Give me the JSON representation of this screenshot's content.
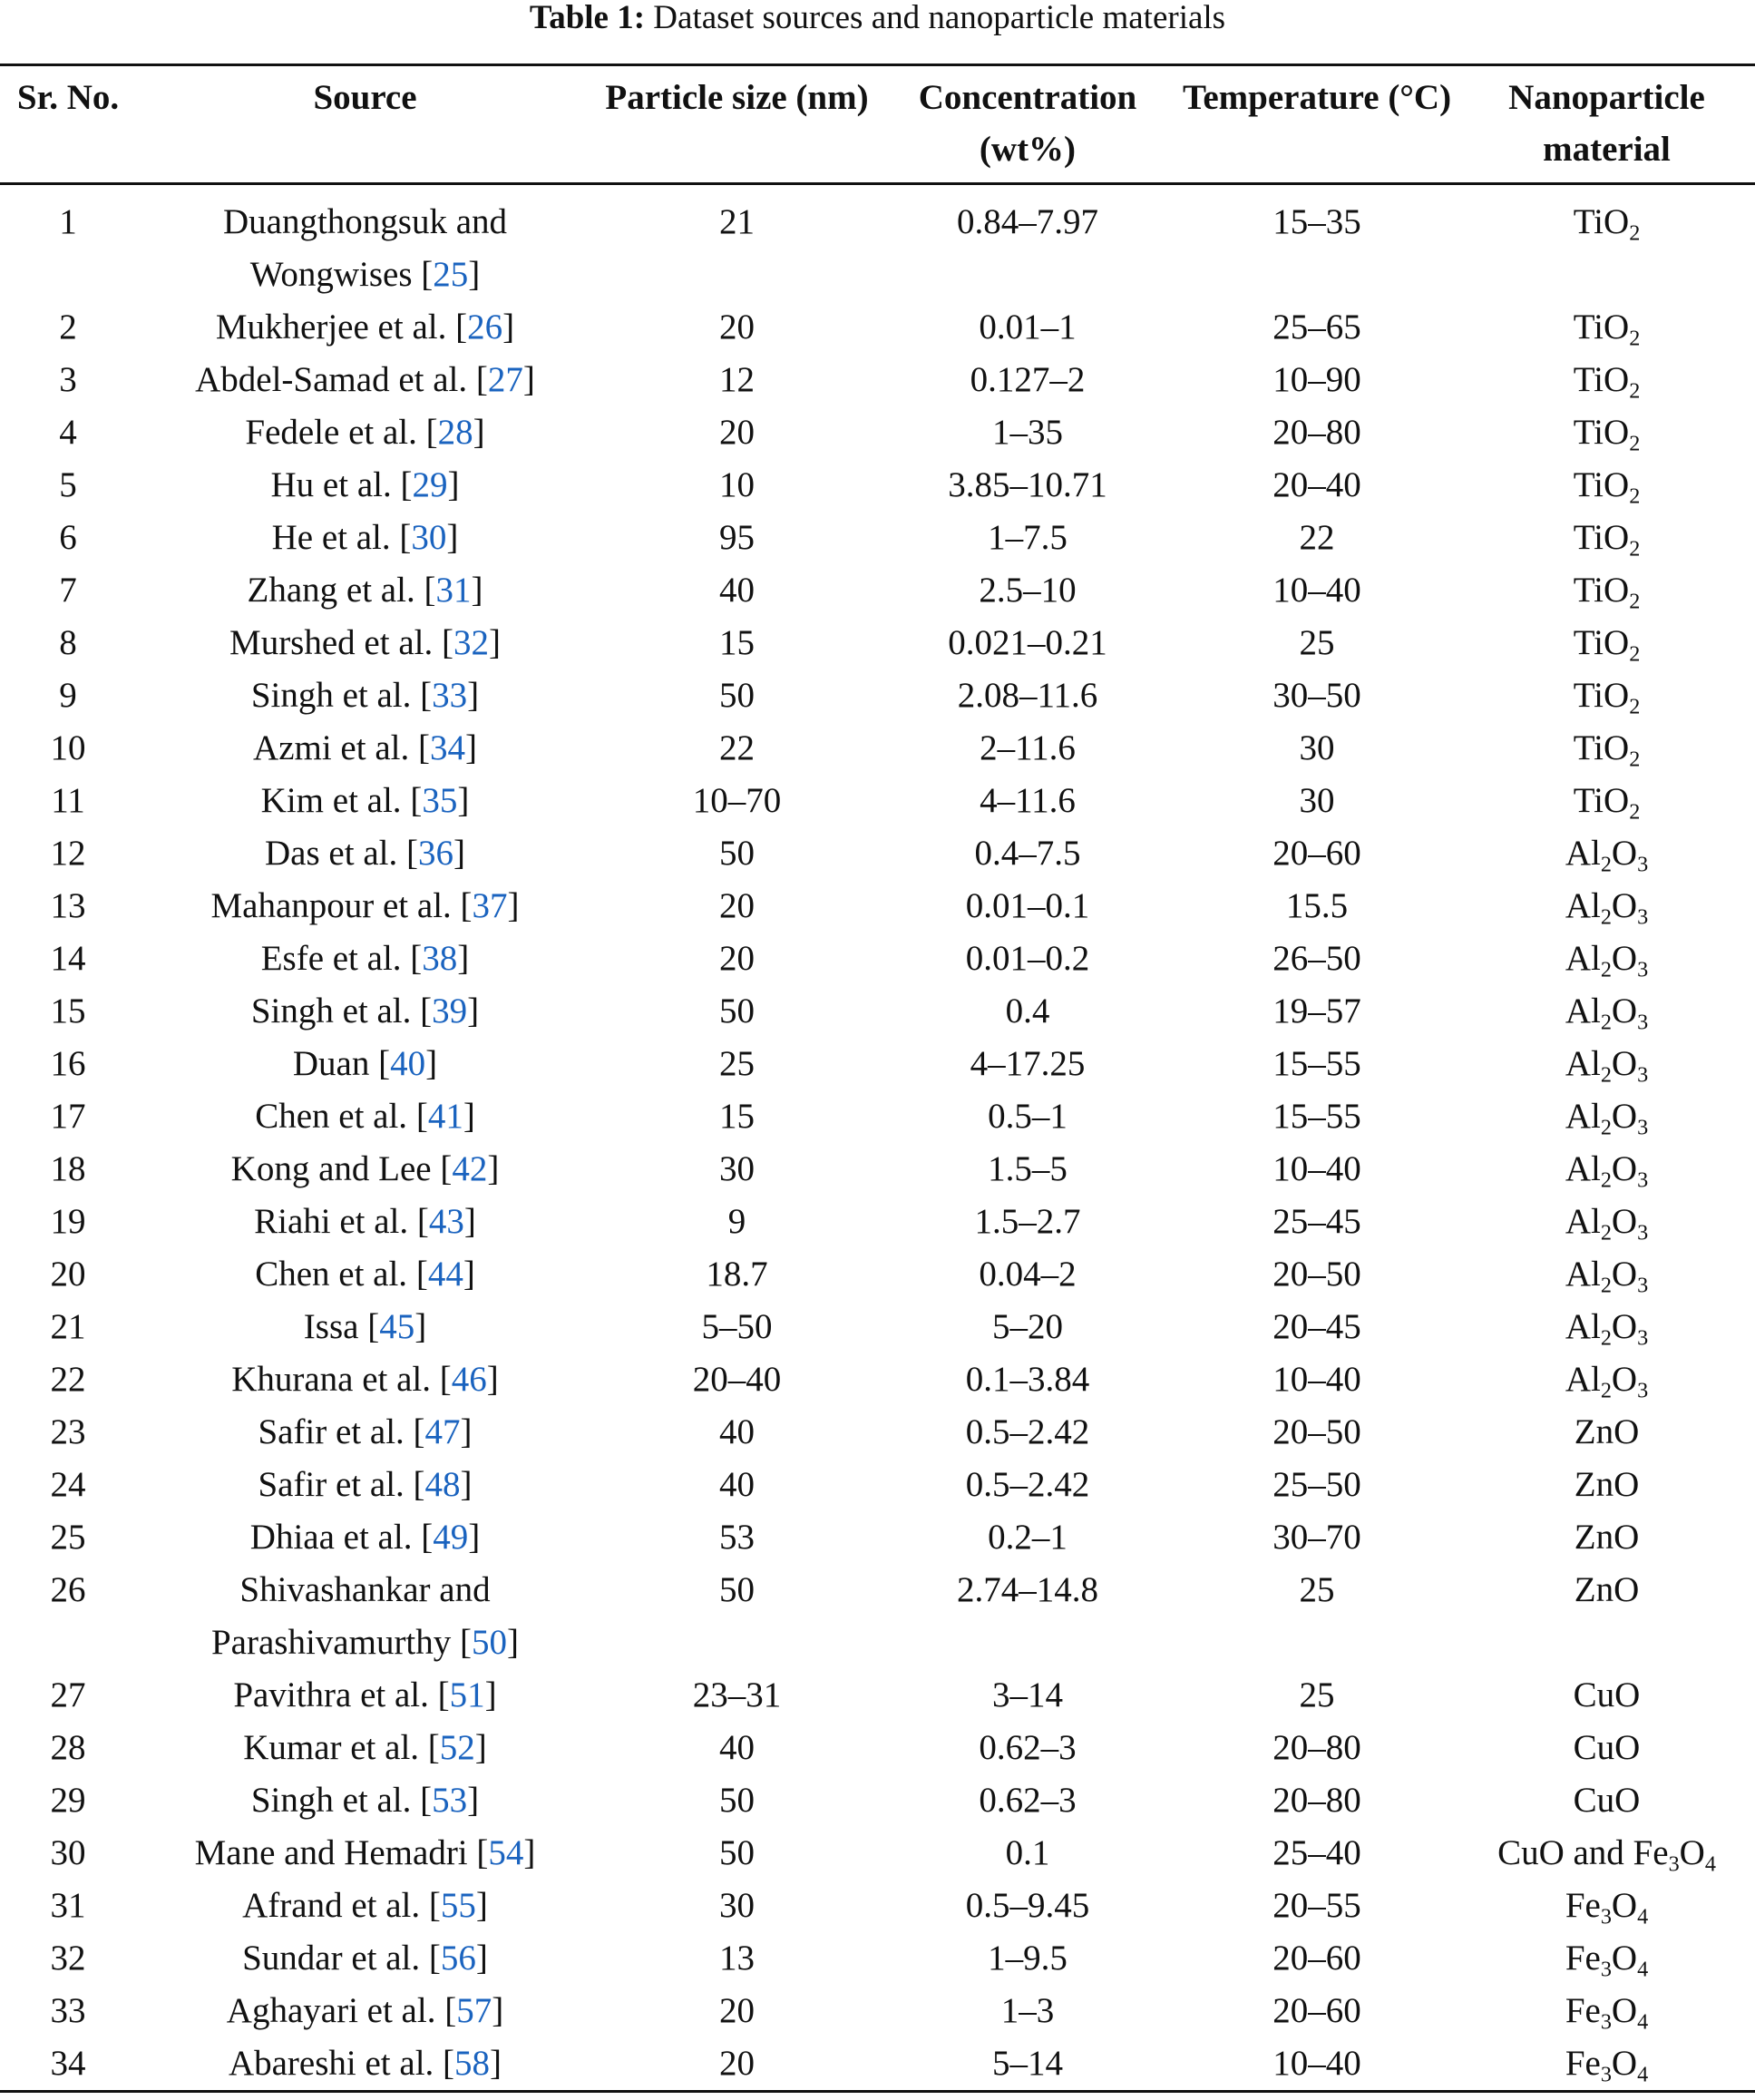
{
  "caption": {
    "label": "Table 1:",
    "text": "Dataset sources and nanoparticle materials"
  },
  "headers": {
    "sr_no": "Sr. No.",
    "source": "Source",
    "particle_size": "Particle size (nm)",
    "concentration": "Concentration (wt%)",
    "temperature": "Temperature (°C)",
    "material": "Nanoparticle material"
  },
  "rows": [
    {
      "sr": "1",
      "name": "Duangthongsuk and Wongwises",
      "ref": "25",
      "size": "21",
      "conc": "0.84–7.97",
      "temp": "15–35",
      "mat": [
        [
          "Ti",
          ""
        ],
        [
          "O",
          "2"
        ]
      ]
    },
    {
      "sr": "2",
      "name": "Mukherjee et al.",
      "ref": "26",
      "size": "20",
      "conc": "0.01–1",
      "temp": "25–65",
      "mat": [
        [
          "Ti",
          ""
        ],
        [
          "O",
          "2"
        ]
      ]
    },
    {
      "sr": "3",
      "name": "Abdel-Samad et al.",
      "ref": "27",
      "size": "12",
      "conc": "0.127–2",
      "temp": "10–90",
      "mat": [
        [
          "Ti",
          ""
        ],
        [
          "O",
          "2"
        ]
      ]
    },
    {
      "sr": "4",
      "name": "Fedele et al.",
      "ref": "28",
      "size": "20",
      "conc": "1–35",
      "temp": "20–80",
      "mat": [
        [
          "Ti",
          ""
        ],
        [
          "O",
          "2"
        ]
      ]
    },
    {
      "sr": "5",
      "name": "Hu et al.",
      "ref": "29",
      "size": "10",
      "conc": "3.85–10.71",
      "temp": "20–40",
      "mat": [
        [
          "Ti",
          ""
        ],
        [
          "O",
          "2"
        ]
      ]
    },
    {
      "sr": "6",
      "name": "He et al.",
      "ref": "30",
      "size": "95",
      "conc": "1–7.5",
      "temp": "22",
      "mat": [
        [
          "Ti",
          ""
        ],
        [
          "O",
          "2"
        ]
      ]
    },
    {
      "sr": "7",
      "name": "Zhang et al.",
      "ref": "31",
      "size": "40",
      "conc": "2.5–10",
      "temp": "10–40",
      "mat": [
        [
          "Ti",
          ""
        ],
        [
          "O",
          "2"
        ]
      ]
    },
    {
      "sr": "8",
      "name": "Murshed et al.",
      "ref": "32",
      "size": "15",
      "conc": "0.021–0.21",
      "temp": "25",
      "mat": [
        [
          "Ti",
          ""
        ],
        [
          "O",
          "2"
        ]
      ]
    },
    {
      "sr": "9",
      "name": "Singh et al.",
      "ref": "33",
      "size": "50",
      "conc": "2.08–11.6",
      "temp": "30–50",
      "mat": [
        [
          "Ti",
          ""
        ],
        [
          "O",
          "2"
        ]
      ]
    },
    {
      "sr": "10",
      "name": "Azmi et al.",
      "ref": "34",
      "size": "22",
      "conc": "2–11.6",
      "temp": "30",
      "mat": [
        [
          "Ti",
          ""
        ],
        [
          "O",
          "2"
        ]
      ]
    },
    {
      "sr": "11",
      "name": "Kim et al.",
      "ref": "35",
      "size": "10–70",
      "conc": "4–11.6",
      "temp": "30",
      "mat": [
        [
          "Ti",
          ""
        ],
        [
          "O",
          "2"
        ]
      ]
    },
    {
      "sr": "12",
      "name": "Das et al.",
      "ref": "36",
      "size": "50",
      "conc": "0.4–7.5",
      "temp": "20–60",
      "mat": [
        [
          "Al",
          "2"
        ],
        [
          "O",
          "3"
        ]
      ]
    },
    {
      "sr": "13",
      "name": "Mahanpour et al.",
      "ref": "37",
      "size": "20",
      "conc": "0.01–0.1",
      "temp": "15.5",
      "mat": [
        [
          "Al",
          "2"
        ],
        [
          "O",
          "3"
        ]
      ]
    },
    {
      "sr": "14",
      "name": "Esfe et al.",
      "ref": "38",
      "size": "20",
      "conc": "0.01–0.2",
      "temp": "26–50",
      "mat": [
        [
          "Al",
          "2"
        ],
        [
          "O",
          "3"
        ]
      ]
    },
    {
      "sr": "15",
      "name": "Singh et al.",
      "ref": "39",
      "size": "50",
      "conc": "0.4",
      "temp": "19–57",
      "mat": [
        [
          "Al",
          "2"
        ],
        [
          "O",
          "3"
        ]
      ]
    },
    {
      "sr": "16",
      "name": "Duan",
      "ref": "40",
      "size": "25",
      "conc": "4–17.25",
      "temp": "15–55",
      "mat": [
        [
          "Al",
          "2"
        ],
        [
          "O",
          "3"
        ]
      ]
    },
    {
      "sr": "17",
      "name": "Chen et al.",
      "ref": "41",
      "size": "15",
      "conc": "0.5–1",
      "temp": "15–55",
      "mat": [
        [
          "Al",
          "2"
        ],
        [
          "O",
          "3"
        ]
      ]
    },
    {
      "sr": "18",
      "name": "Kong and Lee",
      "ref": "42",
      "size": "30",
      "conc": "1.5–5",
      "temp": "10–40",
      "mat": [
        [
          "Al",
          "2"
        ],
        [
          "O",
          "3"
        ]
      ]
    },
    {
      "sr": "19",
      "name": "Riahi et al.",
      "ref": "43",
      "size": "9",
      "conc": "1.5–2.7",
      "temp": "25–45",
      "mat": [
        [
          "Al",
          "2"
        ],
        [
          "O",
          "3"
        ]
      ]
    },
    {
      "sr": "20",
      "name": "Chen et al.",
      "ref": "44",
      "size": "18.7",
      "conc": "0.04–2",
      "temp": "20–50",
      "mat": [
        [
          "Al",
          "2"
        ],
        [
          "O",
          "3"
        ]
      ]
    },
    {
      "sr": "21",
      "name": "Issa",
      "ref": "45",
      "size": "5–50",
      "conc": "5–20",
      "temp": "20–45",
      "mat": [
        [
          "Al",
          "2"
        ],
        [
          "O",
          "3"
        ]
      ]
    },
    {
      "sr": "22",
      "name": "Khurana et al.",
      "ref": "46",
      "size": "20–40",
      "conc": "0.1–3.84",
      "temp": "10–40",
      "mat": [
        [
          "Al",
          "2"
        ],
        [
          "O",
          "3"
        ]
      ]
    },
    {
      "sr": "23",
      "name": "Safir et al.",
      "ref": "47",
      "size": "40",
      "conc": "0.5–2.42",
      "temp": "20–50",
      "mat": [
        [
          "ZnO",
          ""
        ]
      ]
    },
    {
      "sr": "24",
      "name": "Safir et al.",
      "ref": "48",
      "size": "40",
      "conc": "0.5–2.42",
      "temp": "25–50",
      "mat": [
        [
          "ZnO",
          ""
        ]
      ]
    },
    {
      "sr": "25",
      "name": "Dhiaa et al.",
      "ref": "49",
      "size": "53",
      "conc": "0.2–1",
      "temp": "30–70",
      "mat": [
        [
          "ZnO",
          ""
        ]
      ]
    },
    {
      "sr": "26",
      "name": "Shivashankar and Parashivamurthy",
      "ref": "50",
      "size": "50",
      "conc": "2.74–14.8",
      "temp": "25",
      "mat": [
        [
          "ZnO",
          ""
        ]
      ]
    },
    {
      "sr": "27",
      "name": "Pavithra et al.",
      "ref": "51",
      "size": "23–31",
      "conc": "3–14",
      "temp": "25",
      "mat": [
        [
          "CuO",
          ""
        ]
      ]
    },
    {
      "sr": "28",
      "name": "Kumar et al.",
      "ref": "52",
      "size": "40",
      "conc": "0.62–3",
      "temp": "20–80",
      "mat": [
        [
          "CuO",
          ""
        ]
      ]
    },
    {
      "sr": "29",
      "name": "Singh et al.",
      "ref": "53",
      "size": "50",
      "conc": "0.62–3",
      "temp": "20–80",
      "mat": [
        [
          "CuO",
          ""
        ]
      ]
    },
    {
      "sr": "30",
      "name": "Mane and Hemadri",
      "ref": "54",
      "size": "50",
      "conc": "0.1",
      "temp": "25–40",
      "mat": [
        [
          "CuO and Fe",
          "3"
        ],
        [
          "O",
          "4"
        ]
      ]
    },
    {
      "sr": "31",
      "name": "Afrand et al.",
      "ref": "55",
      "size": "30",
      "conc": "0.5–9.45",
      "temp": "20–55",
      "mat": [
        [
          "Fe",
          "3"
        ],
        [
          "O",
          "4"
        ]
      ]
    },
    {
      "sr": "32",
      "name": "Sundar et al.",
      "ref": "56",
      "size": "13",
      "conc": "1–9.5",
      "temp": "20–60",
      "mat": [
        [
          "Fe",
          "3"
        ],
        [
          "O",
          "4"
        ]
      ]
    },
    {
      "sr": "33",
      "name": "Aghayari et al.",
      "ref": "57",
      "size": "20",
      "conc": "1–3",
      "temp": "20–60",
      "mat": [
        [
          "Fe",
          "3"
        ],
        [
          "O",
          "4"
        ]
      ]
    },
    {
      "sr": "34",
      "name": "Abareshi et al.",
      "ref": "58",
      "size": "20",
      "conc": "5–14",
      "temp": "10–40",
      "mat": [
        [
          "Fe",
          "3"
        ],
        [
          "O",
          "4"
        ]
      ]
    }
  ]
}
